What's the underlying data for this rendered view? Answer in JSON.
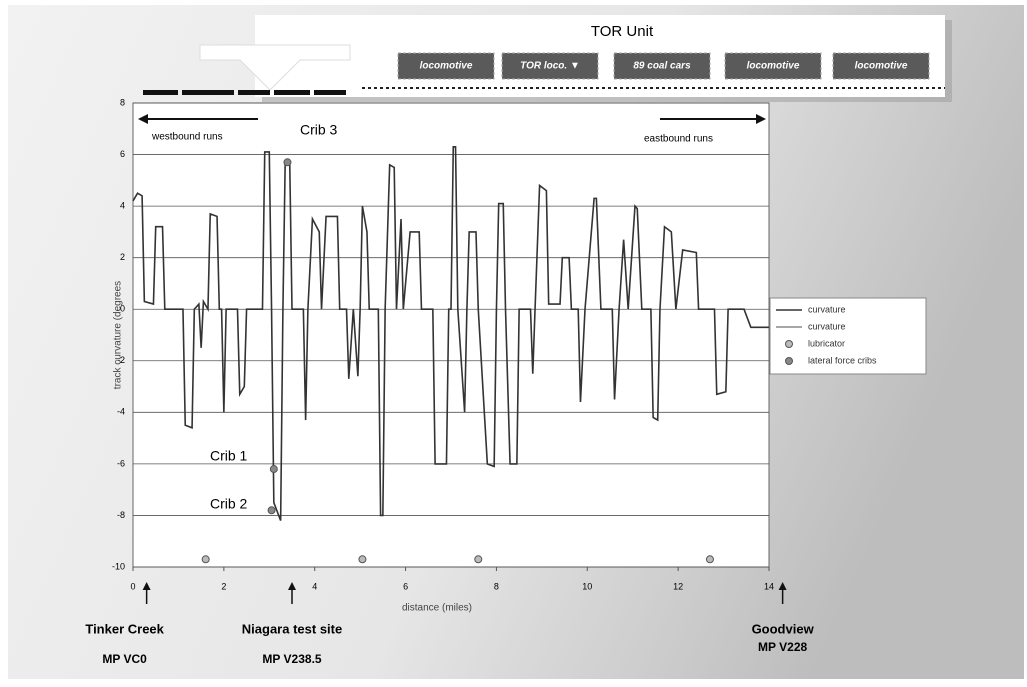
{
  "chart_data": {
    "type": "line",
    "header": {
      "title": "TOR Unit",
      "cars": [
        "locomotive",
        "TOR loco. ▼",
        "89 coal cars",
        "locomotive",
        "locomotive"
      ]
    },
    "y_label": "track curvature (degrees",
    "x_label": "distance (miles)",
    "xlim": [
      0,
      14
    ],
    "xticks": [
      0,
      2,
      4,
      6,
      8,
      10,
      12,
      14
    ],
    "ylim": [
      -10,
      8
    ],
    "yticks": [
      -10,
      -8,
      -6,
      -4,
      -2,
      0,
      2,
      4,
      6,
      8
    ],
    "grid": true,
    "series": [
      {
        "name": "curvature",
        "color": "#333333",
        "mode": "line",
        "x": [
          0,
          0.1,
          0.2,
          0.25,
          0.45,
          0.5,
          0.65,
          0.7,
          1.1,
          1.15,
          1.3,
          1.35,
          1.45,
          1.5,
          1.55,
          1.65,
          1.7,
          1.85,
          1.9,
          1.95,
          2.0,
          2.05,
          2.3,
          2.35,
          2.45,
          2.5,
          2.85,
          2.9,
          3.0,
          3.05,
          3.1,
          3.25,
          3.3,
          3.35,
          3.45,
          3.5,
          3.75,
          3.8,
          3.85,
          3.95,
          4.1,
          4.15,
          4.25,
          4.5,
          4.55,
          4.7,
          4.75,
          4.85,
          4.95,
          5.0,
          5.05,
          5.15,
          5.2,
          5.4,
          5.45,
          5.5,
          5.55,
          5.65,
          5.75,
          5.8,
          5.9,
          5.95,
          6.1,
          6.3,
          6.35,
          6.6,
          6.65,
          6.9,
          6.95,
          7.0,
          7.05,
          7.1,
          7.15,
          7.3,
          7.35,
          7.4,
          7.55,
          7.6,
          7.8,
          7.95,
          8.0,
          8.05,
          8.15,
          8.2,
          8.3,
          8.45,
          8.5,
          8.75,
          8.8,
          8.85,
          8.95,
          9.1,
          9.15,
          9.4,
          9.45,
          9.6,
          9.65,
          9.8,
          9.85,
          9.95,
          10.15,
          10.2,
          10.3,
          10.55,
          10.6,
          10.7,
          10.8,
          10.9,
          11.05,
          11.1,
          11.2,
          11.4,
          11.45,
          11.55,
          11.6,
          11.7,
          11.85,
          11.95,
          12.1,
          12.4,
          12.45,
          12.8,
          12.85,
          13.05,
          13.1,
          13.3,
          13.45,
          13.6,
          13.8,
          14
        ],
        "values": [
          4.2,
          4.5,
          4.4,
          0.3,
          0.2,
          3.2,
          3.2,
          0,
          0,
          -4.5,
          -4.6,
          0,
          0.2,
          -1.5,
          0.3,
          0,
          3.7,
          3.6,
          0,
          0,
          -4.0,
          0,
          0,
          -3.3,
          -3,
          0,
          0,
          6.1,
          6.1,
          0,
          -7.5,
          -8.2,
          0,
          5.7,
          5.7,
          0,
          0,
          -4.3,
          0,
          3.5,
          3,
          0,
          3.6,
          3.6,
          0,
          0,
          -2.7,
          0,
          -2.6,
          0,
          4.0,
          3.0,
          0,
          0,
          -8,
          -8,
          0,
          5.6,
          5.5,
          0,
          3.5,
          0,
          3.0,
          3.0,
          0,
          0,
          -6.0,
          -6.0,
          0,
          0,
          6.3,
          6.3,
          0,
          -4.0,
          0,
          3.0,
          3.0,
          0,
          -6,
          -6.1,
          0,
          4.1,
          4.1,
          0,
          -6,
          -6,
          0,
          0,
          -2.5,
          0,
          4.8,
          4.6,
          0.2,
          0.2,
          2.0,
          2,
          0,
          0,
          -3.6,
          0,
          4.3,
          4.3,
          0,
          0,
          -3.5,
          0,
          2.7,
          0,
          4.0,
          3.9,
          0,
          0,
          -4.2,
          -4.3,
          0,
          3.2,
          3.0,
          0,
          2.3,
          2.2,
          0,
          0,
          -3.3,
          -3.2,
          0,
          0,
          0,
          -0.7,
          -0.7,
          -0.7
        ]
      },
      {
        "name": "lubricator",
        "color": "#bbbbbb",
        "mode": "scatter",
        "x": [
          1.6,
          5.05,
          7.6,
          12.7
        ],
        "values": [
          -9.7,
          -9.7,
          -9.7,
          -9.7
        ]
      },
      {
        "name": "lateral force cribs",
        "color": "#888888",
        "mode": "scatter",
        "x": [
          3.1,
          3.05,
          3.4
        ],
        "values": [
          -6.2,
          -7.8,
          5.7
        ]
      }
    ],
    "legend_extra": {
      "name": "curvature",
      "color": "#888888"
    },
    "annotations": {
      "westbound": "westbound runs",
      "eastbound": "eastbound runs",
      "crib3": "Crib 3",
      "crib1": "Crib 1",
      "crib2": "Crib 2"
    },
    "sites": [
      {
        "name": "Tinker Creek",
        "mp": "MP VC0",
        "at": 0.3
      },
      {
        "name": "Niagara test site",
        "mp": "MP V238.5",
        "at": 3.5
      },
      {
        "name": "Goodview",
        "mp": "MP V228",
        "at": 14.3
      }
    ]
  }
}
